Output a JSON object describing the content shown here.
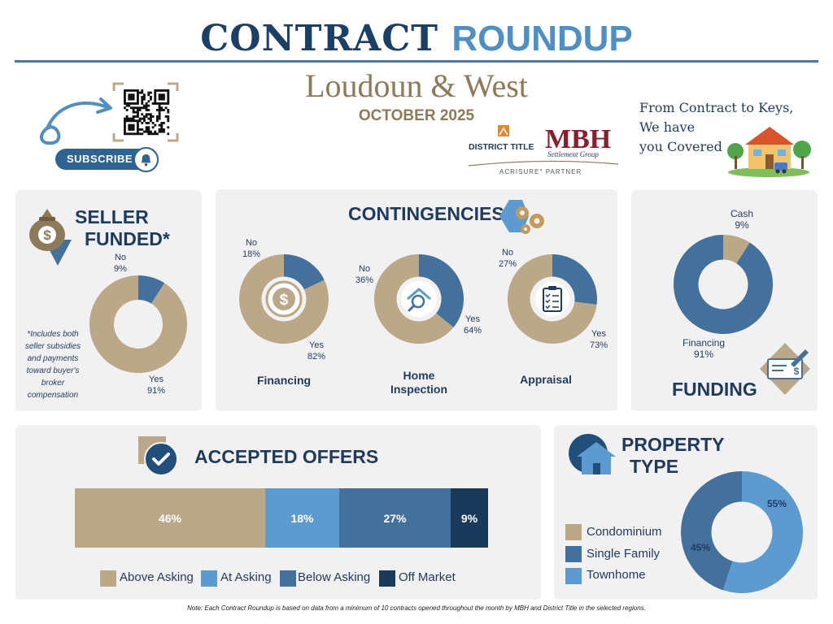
{
  "header": {
    "title_word1": "CONTRACT",
    "title_word2": "ROUNDUP",
    "region": "Loudoun & West",
    "month": "OCTOBER 2025",
    "subscribe_label": "SUBSCRIBE",
    "tagline": [
      "From Contract to Keys,",
      "We have",
      "you Covered"
    ],
    "logo_district": "DISTRICT TITLE",
    "logo_mbh": "MBH",
    "logo_mbh_sub": "Settlement Group",
    "logo_partner": "ACRISURE° PARTNER"
  },
  "seller_funded": {
    "title_line1": "SELLER",
    "title_line2": "FUNDED*",
    "footnote_lines": [
      "*Includes both",
      "seller subsidies",
      "and payments",
      "toward buyer's",
      "broker",
      "compensation"
    ]
  },
  "contingencies": {
    "title": "CONTINGENCIES",
    "categories": [
      "Financing",
      "Home Inspection",
      "Appraisal"
    ]
  },
  "funding": {
    "title": "FUNDING"
  },
  "accepted_offers": {
    "title": "ACCEPTED OFFERS"
  },
  "property_type": {
    "title_line1": "PROPERTY",
    "title_line2": "TYPE"
  },
  "footer": {
    "note": "Note: Each Contract Roundup is based on data from a minimum of 10 contracts opened throughout the month by MBH and District Title in the selected regions."
  },
  "colors": {
    "tan": "#bba888",
    "navy": "#44719c",
    "light_blue": "#5b9bcf",
    "dark_navy": "#1a3a5c",
    "heading": "#1f3a5f"
  },
  "chart_data": [
    {
      "id": "seller_funded",
      "type": "pie",
      "donut": true,
      "slices": [
        {
          "label": "Yes",
          "value": 91,
          "display": "91%",
          "color": "#bba888"
        },
        {
          "label": "No",
          "value": 9,
          "display": "9%",
          "color": "#44719c"
        }
      ]
    },
    {
      "id": "contingency_financing",
      "type": "pie",
      "donut": true,
      "title": "Financing",
      "slices": [
        {
          "label": "Yes",
          "value": 82,
          "display": "82%",
          "color": "#bba888"
        },
        {
          "label": "No",
          "value": 18,
          "display": "18%",
          "color": "#44719c"
        }
      ]
    },
    {
      "id": "contingency_home_inspection",
      "type": "pie",
      "donut": true,
      "title": "Home Inspection",
      "slices": [
        {
          "label": "Yes",
          "value": 64,
          "display": "64%",
          "color": "#bba888"
        },
        {
          "label": "No",
          "value": 36,
          "display": "36%",
          "color": "#44719c"
        }
      ]
    },
    {
      "id": "contingency_appraisal",
      "type": "pie",
      "donut": true,
      "title": "Appraisal",
      "slices": [
        {
          "label": "Yes",
          "value": 73,
          "display": "73%",
          "color": "#bba888"
        },
        {
          "label": "No",
          "value": 27,
          "display": "27%",
          "color": "#44719c"
        }
      ]
    },
    {
      "id": "funding",
      "type": "pie",
      "donut": true,
      "slices": [
        {
          "label": "Cash",
          "value": 9,
          "display": "9%",
          "color": "#bba888"
        },
        {
          "label": "Financing",
          "value": 91,
          "display": "91%",
          "color": "#44719c"
        }
      ]
    },
    {
      "id": "accepted_offers",
      "type": "bar",
      "stacked": true,
      "orientation": "horizontal",
      "categories": [
        "Above Asking",
        "At Asking",
        "Below Asking",
        "Off Market"
      ],
      "values": [
        46,
        18,
        27,
        9
      ],
      "labels": [
        "46%",
        "18%",
        "27%",
        "9%"
      ],
      "colors": [
        "#bba888",
        "#5b9bcf",
        "#44719c",
        "#1a3a5c"
      ],
      "legend": "bottom"
    },
    {
      "id": "property_type",
      "type": "pie",
      "donut": true,
      "legend": [
        "Condominium",
        "Single Family",
        "Townhome"
      ],
      "legend_colors": [
        "#bba888",
        "#44719c",
        "#5b9bcf"
      ],
      "slices": [
        {
          "label": "Condominium",
          "value": 0,
          "display": "",
          "color": "#bba888"
        },
        {
          "label": "Single Family",
          "value": 45,
          "display": "45%",
          "color": "#44719c"
        },
        {
          "label": "Townhome",
          "value": 55,
          "display": "55%",
          "color": "#5b9bcf"
        }
      ]
    }
  ]
}
